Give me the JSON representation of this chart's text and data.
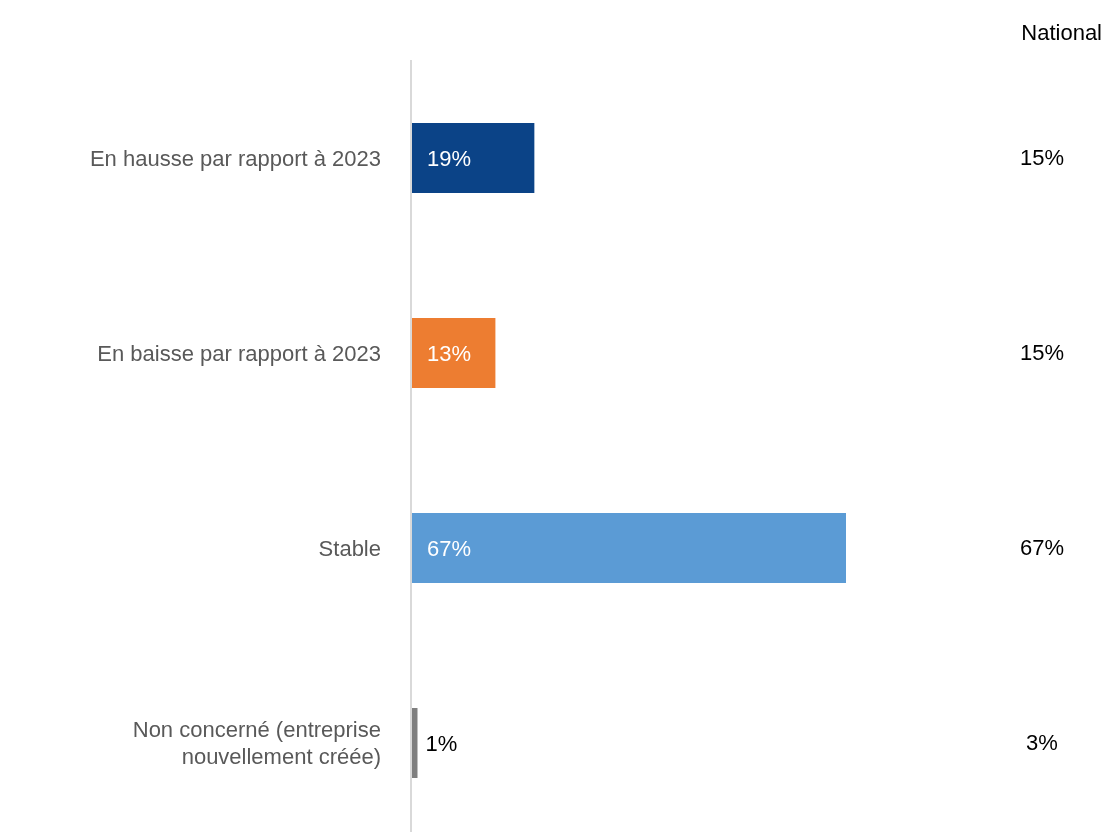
{
  "chart_data": {
    "type": "bar",
    "orientation": "horizontal",
    "categories": [
      "En hausse par rapport à 2023",
      "En baisse par rapport à 2023",
      "Stable",
      "Non concerné (entreprise nouvellement créée)"
    ],
    "values": [
      19,
      13,
      67,
      1
    ],
    "colors": [
      "#0b4387",
      "#ed7d31",
      "#5b9bd5",
      "#7f7f7f"
    ],
    "value_labels": [
      "19%",
      "13%",
      "67%",
      "1%"
    ],
    "annotations": [
      "National",
      "15%",
      "15%",
      "67%",
      "3%"
    ]
  }
}
